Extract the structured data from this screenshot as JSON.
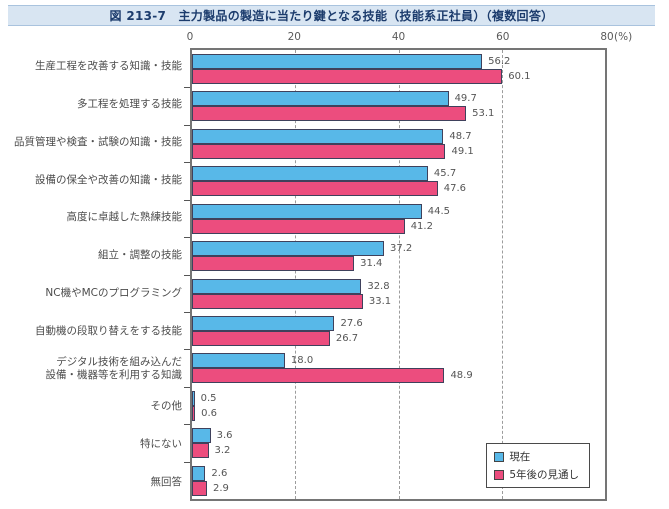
{
  "figure": {
    "title": "図 213-7　主力製品の製造に当たり鍵となる技能（技能系正社員）（複数回答）"
  },
  "legend": {
    "current_label": "現在",
    "future_label": "5年後の見通し"
  },
  "colors": {
    "current_bar": "#58b8e8",
    "future_bar": "#ec4d7e",
    "bar_border": "#3f415c",
    "title_bg": "#d8e5f2",
    "title_text": "#1c3c6d",
    "frame": "#757575",
    "grid": "#9c9c9c"
  },
  "chart_data": {
    "type": "bar",
    "orientation": "horizontal",
    "title": "図 213-7　主力製品の製造に当たり鍵となる技能（技能系正社員）（複数回答）",
    "unit": "(%)",
    "xlim": [
      0,
      80
    ],
    "x_ticks": [
      "0",
      "20",
      "40",
      "60",
      "80"
    ],
    "grid": "vertical-dashed",
    "legend_position": "inside-bottom-right",
    "categories": [
      "生産工程を改善する知識・技能",
      "多工程を処理する技能",
      "品質管理や検査・試験の知識・技能",
      "設備の保全や改善の知識・技能",
      "高度に卓越した熟練技能",
      "組立・調整の技能",
      "NC機やMCのプログラミング",
      "自動機の段取り替えをする技能",
      "デジタル技術を組み込んだ\n設備・機器等を利用する知識",
      "その他",
      "特にない",
      "無回答"
    ],
    "series": [
      {
        "name": "現在",
        "color": "#58b8e8",
        "values": [
          56.2,
          49.7,
          48.7,
          45.7,
          44.5,
          37.2,
          32.8,
          27.6,
          18.0,
          0.5,
          3.6,
          2.6
        ],
        "display": [
          "56.2",
          "49.7",
          "48.7",
          "45.7",
          "44.5",
          "37.2",
          "32.8",
          "27.6",
          "18.0",
          "0.5",
          "3.6",
          "2.6"
        ]
      },
      {
        "name": "5年後の見通し",
        "color": "#ec4d7e",
        "values": [
          60.1,
          53.1,
          49.1,
          47.6,
          41.2,
          31.4,
          33.1,
          26.7,
          48.9,
          0.6,
          3.2,
          2.9
        ],
        "display": [
          "60.1",
          "53.1",
          "49.1",
          "47.6",
          "41.2",
          "31.4",
          "33.1",
          "26.7",
          "48.9",
          "0.6",
          "3.2",
          "2.9"
        ]
      }
    ]
  }
}
